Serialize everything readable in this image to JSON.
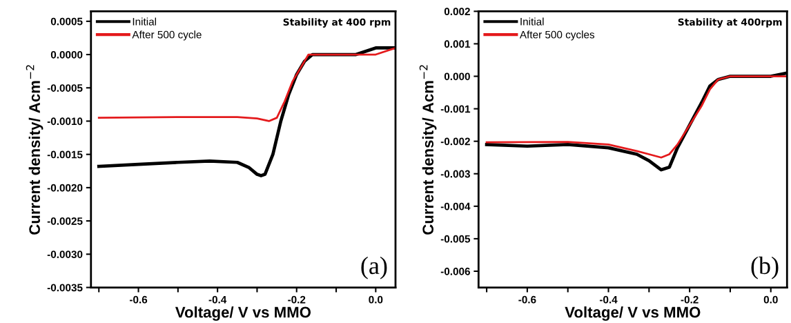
{
  "chart_data": [
    {
      "type": "line",
      "xlabel": "Voltage/ V vs MMO",
      "ylabel": "Current density/ Acm$^{−2}$",
      "legend": "top left",
      "grid": false,
      "marker": "none",
      "line_style": "solid",
      "annotations": [
        "Stability at 400 rpm",
        "(a)"
      ],
      "xlim": [
        -0.72,
        0.05
      ],
      "ylim": [
        -0.0035,
        0.00065
      ],
      "xticks": [
        {
          "value": -0.7,
          "label": null
        },
        {
          "value": -0.6,
          "label": "-0.6"
        },
        {
          "value": -0.5,
          "label": null
        },
        {
          "value": -0.4,
          "label": "-0.4"
        },
        {
          "value": -0.3,
          "label": null
        },
        {
          "value": -0.2,
          "label": "-0.2"
        },
        {
          "value": -0.1,
          "label": null
        },
        {
          "value": 0.0,
          "label": "0.0"
        }
      ],
      "yticks": [
        {
          "value": 0.0005,
          "label": "0.0005"
        },
        {
          "value": 0.0,
          "label": "0.0000"
        },
        {
          "value": -0.0005,
          "label": "-0.0005"
        },
        {
          "value": -0.001,
          "label": "-0.0010"
        },
        {
          "value": -0.0015,
          "label": "-0.0015"
        },
        {
          "value": -0.002,
          "label": "-0.0020"
        },
        {
          "value": -0.0025,
          "label": "-0.0025"
        },
        {
          "value": -0.003,
          "label": "-0.0030"
        },
        {
          "value": -0.0035,
          "label": "-0.0035"
        }
      ],
      "series": [
        {
          "name": "Initial",
          "color": "#000000",
          "x": [
            -0.7,
            -0.6,
            -0.5,
            -0.42,
            -0.35,
            -0.32,
            -0.3,
            -0.29,
            -0.28,
            -0.26,
            -0.24,
            -0.22,
            -0.2,
            -0.18,
            -0.16,
            -0.14,
            -0.1,
            -0.05,
            0.0,
            0.05
          ],
          "values": [
            -0.00168,
            -0.00165,
            -0.00162,
            -0.0016,
            -0.00162,
            -0.0017,
            -0.0018,
            -0.00182,
            -0.0018,
            -0.0015,
            -0.001,
            -0.0006,
            -0.0003,
            -0.0001,
            0.0,
            0.0,
            0.0,
            0.0,
            0.0001,
            0.0001
          ]
        },
        {
          "name": "After 500 cycle",
          "color": "#e41a1c",
          "x": [
            -0.7,
            -0.5,
            -0.35,
            -0.3,
            -0.27,
            -0.25,
            -0.23,
            -0.21,
            -0.19,
            -0.17,
            -0.15,
            -0.1,
            0.0,
            0.05
          ],
          "values": [
            -0.00095,
            -0.00094,
            -0.00094,
            -0.00096,
            -0.001,
            -0.00095,
            -0.0007,
            -0.0004,
            -0.0002,
            0.0,
            0.0,
            0.0,
            0.0,
            0.0001
          ]
        }
      ]
    },
    {
      "type": "line",
      "xlabel": "Voltage/ V vs MMO",
      "ylabel": "Current density/ Acm$^{−2}$",
      "legend": "top left",
      "grid": false,
      "marker": "none",
      "line_style": "solid",
      "annotations": [
        "Stability at 400rpm",
        "(b)"
      ],
      "xlim": [
        -0.72,
        0.04
      ],
      "ylim": [
        -0.0065,
        0.002
      ],
      "xticks": [
        {
          "value": -0.7,
          "label": null
        },
        {
          "value": -0.6,
          "label": "-0.6"
        },
        {
          "value": -0.5,
          "label": null
        },
        {
          "value": -0.4,
          "label": "-0.4"
        },
        {
          "value": -0.3,
          "label": null
        },
        {
          "value": -0.2,
          "label": "-0.2"
        },
        {
          "value": -0.1,
          "label": null
        },
        {
          "value": 0.0,
          "label": "0.0"
        }
      ],
      "yticks": [
        {
          "value": 0.002,
          "label": "0.002"
        },
        {
          "value": 0.001,
          "label": "0.001"
        },
        {
          "value": 0.0,
          "label": "0.000"
        },
        {
          "value": -0.001,
          "label": "-0.001"
        },
        {
          "value": -0.002,
          "label": "-0.002"
        },
        {
          "value": -0.003,
          "label": "-0.003"
        },
        {
          "value": -0.004,
          "label": "-0.004"
        },
        {
          "value": -0.005,
          "label": "-0.005"
        },
        {
          "value": -0.006,
          "label": "-0.006"
        }
      ],
      "series": [
        {
          "name": "Initial",
          "color": "#000000",
          "x": [
            -0.7,
            -0.6,
            -0.5,
            -0.4,
            -0.33,
            -0.3,
            -0.27,
            -0.25,
            -0.23,
            -0.2,
            -0.17,
            -0.15,
            -0.13,
            -0.1,
            0.0,
            0.04
          ],
          "values": [
            -0.0021,
            -0.00215,
            -0.0021,
            -0.0022,
            -0.0024,
            -0.0026,
            -0.00288,
            -0.0028,
            -0.0022,
            -0.0015,
            -0.0008,
            -0.0003,
            -0.0001,
            0.0,
            0.0,
            0.0001
          ]
        },
        {
          "name": "After 500 cycles",
          "color": "#e41a1c",
          "x": [
            -0.7,
            -0.5,
            -0.4,
            -0.33,
            -0.3,
            -0.27,
            -0.25,
            -0.23,
            -0.2,
            -0.17,
            -0.15,
            -0.13,
            -0.1,
            0.0,
            0.04
          ],
          "values": [
            -0.00203,
            -0.00202,
            -0.0021,
            -0.0023,
            -0.0024,
            -0.0025,
            -0.0024,
            -0.0021,
            -0.0015,
            -0.0009,
            -0.0004,
            -0.0001,
            0.0,
            0.0,
            0.0
          ]
        }
      ]
    }
  ]
}
